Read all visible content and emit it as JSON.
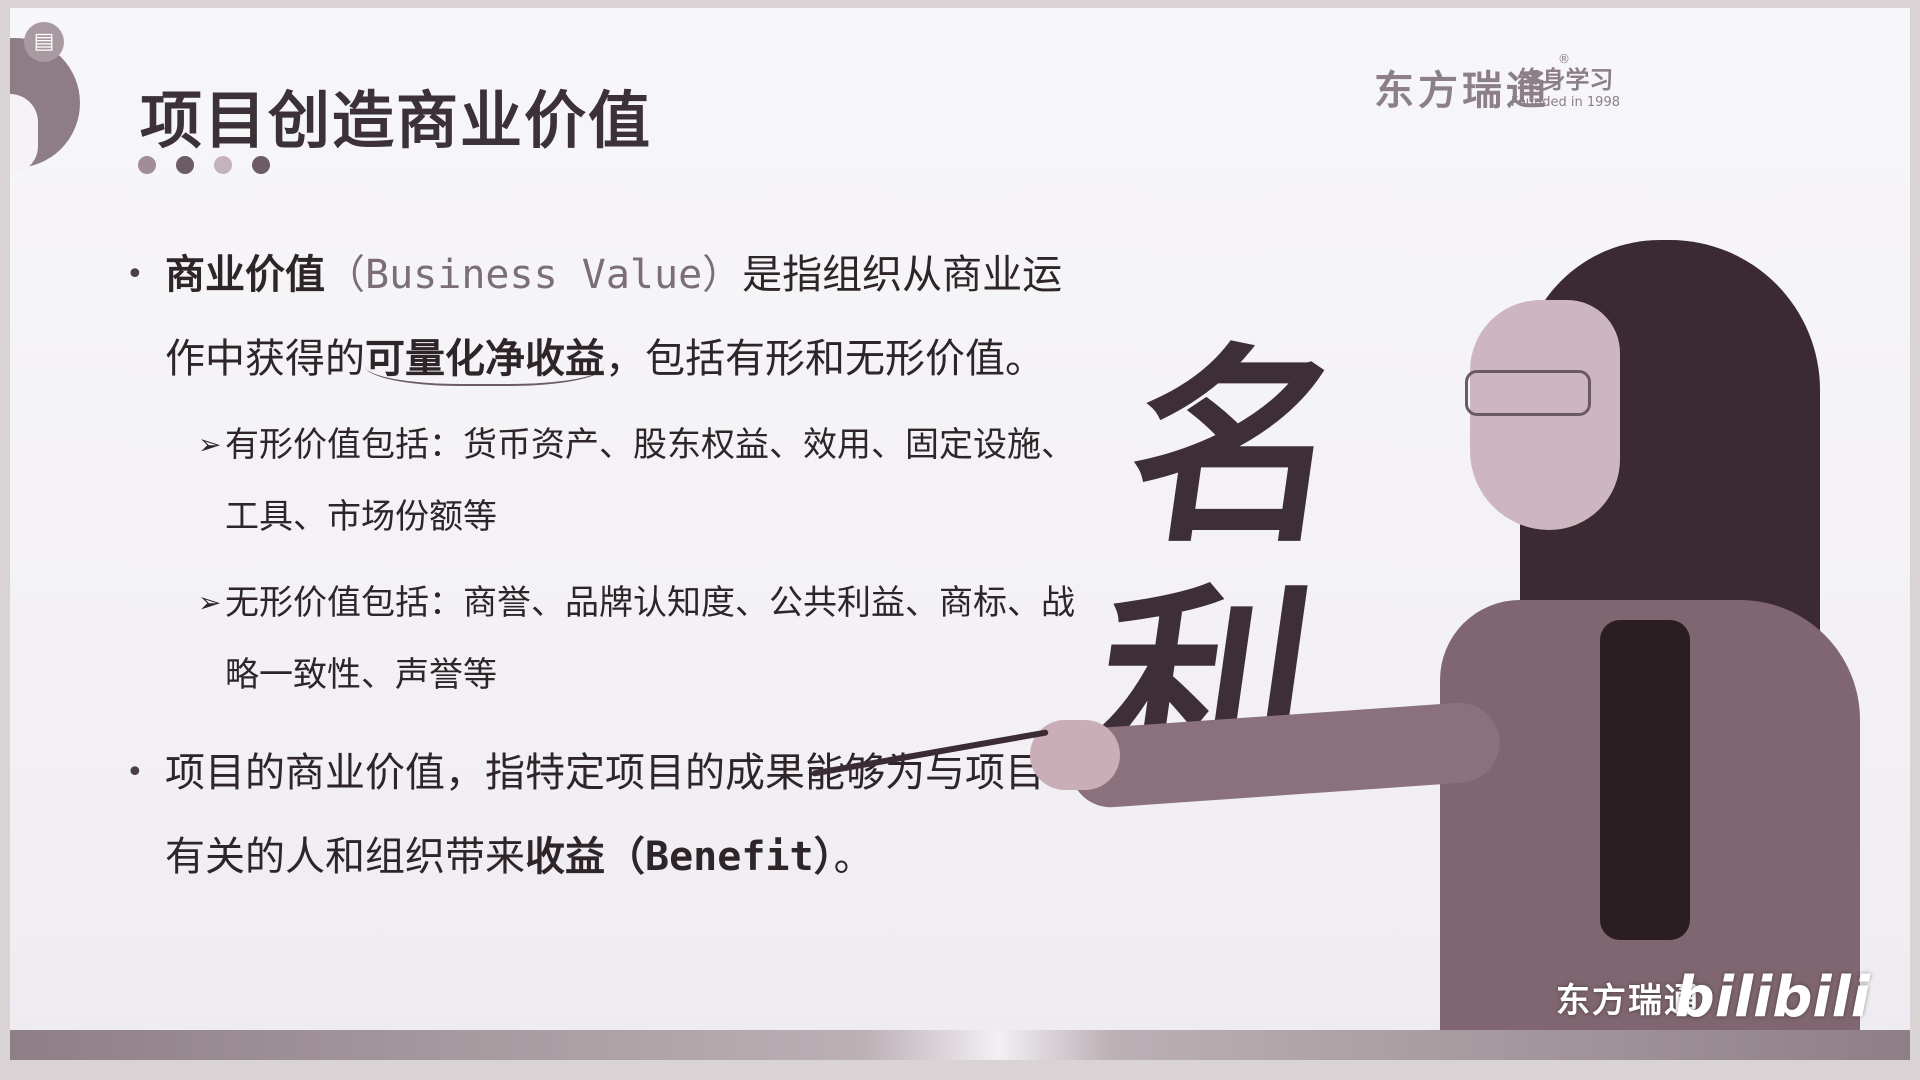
{
  "slide": {
    "title": "项目创造商业价值",
    "dot_colors": [
      "#a08d96",
      "#6e5c65",
      "#c3b4bb",
      "#6e5c65"
    ]
  },
  "logo": {
    "brand": "东方瑞通",
    "reg_mark": "®",
    "sub_main": "终身学习",
    "sub_year": "Founded in 1998"
  },
  "chat_icon": "chat-icon",
  "bullets": {
    "b1": {
      "term": "商业价值",
      "paren_open": "（",
      "english": "Business Value",
      "paren_close": "）",
      "text_a": "是指组织从商业运作中获得的",
      "highlight": "可量化净收益",
      "text_b": "，包括有形和无形价值。"
    },
    "sub1": {
      "arrow": "➢",
      "text": "有形价值包括：货币资产、股东权益、效用、固定设施、工具、市场份额等"
    },
    "sub2": {
      "arrow": "➢",
      "text": "无形价值包括：商誉、品牌认知度、公共利益、商标、战略一致性、声誉等"
    },
    "b2": {
      "text_a": "项目的商业价值，指特定项目的成果能够为与项目有关的人和组织带来",
      "strong": "收益",
      "paren_open": "（",
      "english": "Benefit",
      "paren_close": "）",
      "text_b": "。"
    }
  },
  "calligraphy": {
    "line1": "名",
    "line2": "利"
  },
  "watermark": {
    "brand": "东方瑞通",
    "bili": "bilibili"
  }
}
